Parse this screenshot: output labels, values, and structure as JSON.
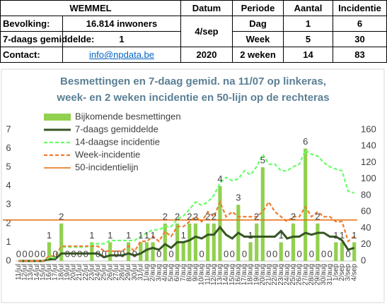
{
  "header": {
    "title": "WEMMEL",
    "columns": [
      "Datum",
      "Periode",
      "Aantal",
      "Incidentie"
    ]
  },
  "info": [
    {
      "label": "Bevolking:",
      "value": "16.814 inwoners"
    },
    {
      "label": "7-daags gemiddelde:",
      "value": "1"
    },
    {
      "label": "Contact:",
      "value": "info@npdata.be"
    }
  ],
  "date": [
    "4/sep",
    "2020"
  ],
  "periods": [
    {
      "period": "Dag",
      "count": 1,
      "incidence": 6
    },
    {
      "period": "Week",
      "count": 5,
      "incidence": 30
    },
    {
      "period": "2 weken",
      "count": 14,
      "incidence": 83
    }
  ],
  "chart_data": {
    "type": "bar",
    "title": [
      "Besmettingen en 7-daag gemid. na 11/07 op linkeras,",
      "week- en 2 weken incidentie en 50-lijn op de  rechteras"
    ],
    "categories": [
      "11/jul",
      "12/jul",
      "13/jul",
      "14/jul",
      "15/jul",
      "16/jul",
      "17/jul",
      "18/jul",
      "19/jul",
      "20/jul",
      "21/jul",
      "22/jul",
      "23/jul",
      "24/jul",
      "25/jul",
      "26/jul",
      "27/jul",
      "28/jul",
      "29/jul",
      "30/jul",
      "31/jul",
      "1/aug",
      "2/aug",
      "3/aug",
      "4/aug",
      "5/aug",
      "6/aug",
      "7/aug",
      "8/aug",
      "9/aug",
      "10/aug",
      "11/aug",
      "12/aug",
      "13/aug",
      "14/aug",
      "15/aug",
      "16/aug",
      "17/aug",
      "18/aug",
      "19/aug",
      "20/aug",
      "21/aug",
      "22/aug",
      "23/aug",
      "24/aug",
      "25/aug",
      "26/aug",
      "27/aug",
      "28/aug",
      "29/aug",
      "30/aug",
      "31/aug",
      "1/sep",
      "2/sep",
      "3/sep",
      "4/sep"
    ],
    "series": [
      {
        "name": "Bijkomende besmettingen",
        "color": "#92d050",
        "style": "bar",
        "axis": "y",
        "values": [
          0,
          0,
          0,
          0,
          0,
          1,
          0,
          2,
          0,
          0,
          0,
          0,
          1,
          0,
          0,
          1,
          0,
          0,
          1,
          0,
          1,
          1,
          1,
          0,
          2,
          0,
          2,
          1,
          2,
          2,
          0,
          2,
          2,
          4,
          0,
          0,
          3,
          0,
          1,
          2,
          5,
          0,
          0,
          1,
          0,
          2,
          0,
          6,
          0,
          2,
          0,
          0,
          1,
          1,
          0,
          1
        ]
      },
      {
        "name": "7-daags gemiddelde",
        "color": "#375623",
        "style": "solid",
        "axis": "y",
        "values": [
          0,
          0,
          0,
          0,
          0,
          0.1,
          0.1,
          0.4,
          0.4,
          0.4,
          0.4,
          0.4,
          0.4,
          0.4,
          0.2,
          0.3,
          0.3,
          0.3,
          0.4,
          0.3,
          0.4,
          0.6,
          0.7,
          0.6,
          0.9,
          0.7,
          1.0,
          1.0,
          1.1,
          1.3,
          1.2,
          1.4,
          1.4,
          1.8,
          1.4,
          1.2,
          1.5,
          1.3,
          1.3,
          1.3,
          1.3,
          1.3,
          1.3,
          1.6,
          1.2,
          1.3,
          1.3,
          1.5,
          1.4,
          1.5,
          1.5,
          1.3,
          1.3,
          1.1,
          0.6,
          0.7
        ]
      },
      {
        "name": "14-daagse incidentie",
        "color": "#66ff66",
        "style": "dashed",
        "axis": "y2",
        "values": [
          0,
          0,
          0,
          0,
          0,
          4,
          4,
          17,
          17,
          17,
          17,
          17,
          21,
          21,
          21,
          25,
          25,
          25,
          25,
          25,
          30,
          34,
          38,
          38,
          42,
          42,
          51,
          55,
          63,
          72,
          68,
          72,
          80,
          95,
          102,
          98,
          100,
          110,
          105,
          115,
          130,
          118,
          118,
          110,
          110,
          115,
          118,
          135,
          130,
          128,
          120,
          115,
          112,
          110,
          85,
          83
        ]
      },
      {
        "name": "Week-incidentie",
        "color": "#ed7d31",
        "style": "dashed",
        "axis": "y2",
        "values": [
          0,
          0,
          0,
          0,
          0,
          6,
          6,
          18,
          18,
          18,
          18,
          18,
          18,
          18,
          12,
          12,
          12,
          12,
          18,
          12,
          24,
          24,
          30,
          24,
          36,
          30,
          42,
          42,
          48,
          54,
          48,
          60,
          54,
          72,
          54,
          60,
          54,
          54,
          54,
          54,
          60,
          72,
          60,
          54,
          48,
          54,
          54,
          66,
          54,
          60,
          54,
          54,
          48,
          48,
          24,
          30
        ]
      }
    ],
    "reference_line": {
      "name": "50-incidentielijn",
      "value": 50,
      "color": "#e46c0a",
      "axis": "y2"
    },
    "ylim": [
      0,
      7
    ],
    "yticks": [
      0,
      1,
      2,
      3,
      4,
      5,
      6,
      7
    ],
    "y2lim": [
      0,
      160
    ],
    "y2ticks": [
      0,
      20,
      40,
      60,
      80,
      100,
      120,
      140,
      160
    ],
    "grid": false
  }
}
